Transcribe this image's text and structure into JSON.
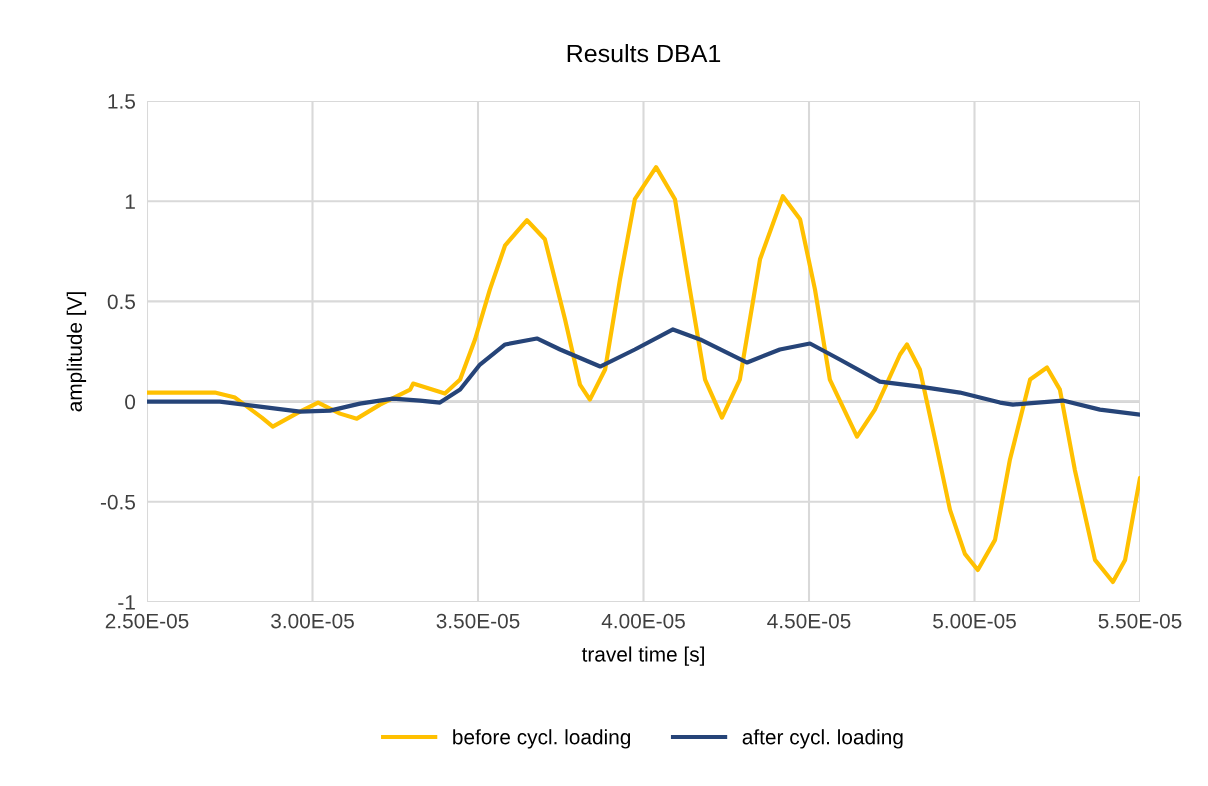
{
  "chart_data": {
    "type": "line",
    "title": "Results DBA1",
    "xlabel": "travel time [s]",
    "ylabel": "amplitude [V]",
    "xlim": [
      2.5e-05,
      5.5e-05
    ],
    "xticks": [
      {
        "value": 2.5e-05,
        "label": "2.50E-05"
      },
      {
        "value": 3e-05,
        "label": "3.00E-05"
      },
      {
        "value": 3.5e-05,
        "label": "3.50E-05"
      },
      {
        "value": 4e-05,
        "label": "4.00E-05"
      },
      {
        "value": 4.5e-05,
        "label": "4.50E-05"
      },
      {
        "value": 5e-05,
        "label": "5.00E-05"
      },
      {
        "value": 5.5e-05,
        "label": "5.50E-05"
      }
    ],
    "ylim": [
      -1,
      1.5
    ],
    "yticks": [
      -1,
      -0.5,
      0,
      0.5,
      1,
      1.5
    ],
    "grid": true,
    "legend": "bottom",
    "marker": "none",
    "line_style": "solid",
    "series": [
      {
        "name": "before cycl. loading",
        "color": "#ffc000",
        "x": [
          2.5e-05,
          2.705e-05,
          2.766e-05,
          2.847e-05,
          2.88e-05,
          2.962e-05,
          3.017e-05,
          3.083e-05,
          3.134e-05,
          3.204e-05,
          3.295e-05,
          3.304e-05,
          3.4e-05,
          3.446e-05,
          3.491e-05,
          3.536e-05,
          3.582e-05,
          3.648e-05,
          3.702e-05,
          3.763e-05,
          3.808e-05,
          3.838e-05,
          3.884e-05,
          3.929e-05,
          3.974e-05,
          4.038e-05,
          4.095e-05,
          4.14e-05,
          4.186e-05,
          4.237e-05,
          4.291e-05,
          4.352e-05,
          4.421e-05,
          4.473e-05,
          4.518e-05,
          4.563e-05,
          4.645e-05,
          4.699e-05,
          4.775e-05,
          4.796e-05,
          4.835e-05,
          4.881e-05,
          4.926e-05,
          4.971e-05,
          5.01e-05,
          5.062e-05,
          5.107e-05,
          5.168e-05,
          5.219e-05,
          5.258e-05,
          5.303e-05,
          5.364e-05,
          5.418e-05,
          5.455e-05,
          5.5e-05
        ],
        "values": [
          0.045,
          0.045,
          0.02,
          -0.08,
          -0.125,
          -0.05,
          -0.005,
          -0.06,
          -0.085,
          -0.015,
          0.06,
          0.09,
          0.04,
          0.11,
          0.31,
          0.56,
          0.78,
          0.905,
          0.81,
          0.41,
          0.085,
          0.01,
          0.16,
          0.61,
          1.01,
          1.17,
          1.01,
          0.56,
          0.11,
          -0.08,
          0.11,
          0.71,
          1.025,
          0.91,
          0.56,
          0.11,
          -0.175,
          -0.04,
          0.235,
          0.285,
          0.16,
          -0.19,
          -0.54,
          -0.76,
          -0.84,
          -0.69,
          -0.29,
          0.11,
          0.17,
          0.06,
          -0.34,
          -0.79,
          -0.9,
          -0.79,
          -0.38
        ]
      },
      {
        "name": "after cycl. loading",
        "color": "#264478",
        "x": [
          2.5e-05,
          2.72e-05,
          2.841e-05,
          2.962e-05,
          3.053e-05,
          3.143e-05,
          3.243e-05,
          3.325e-05,
          3.385e-05,
          3.446e-05,
          3.506e-05,
          3.582e-05,
          3.678e-05,
          3.748e-05,
          3.869e-05,
          3.974e-05,
          4.089e-05,
          4.171e-05,
          4.313e-05,
          4.412e-05,
          4.503e-05,
          4.593e-05,
          4.714e-05,
          4.835e-05,
          4.956e-05,
          5.077e-05,
          5.116e-05,
          5.267e-05,
          5.379e-05,
          5.5e-05
        ],
        "values": [
          0,
          0,
          -0.025,
          -0.05,
          -0.045,
          -0.01,
          0.015,
          0.005,
          -0.005,
          0.06,
          0.185,
          0.285,
          0.315,
          0.26,
          0.175,
          0.26,
          0.36,
          0.31,
          0.195,
          0.26,
          0.29,
          0.21,
          0.1,
          0.075,
          0.045,
          -0.005,
          -0.015,
          0.005,
          -0.04,
          -0.065
        ]
      }
    ]
  }
}
